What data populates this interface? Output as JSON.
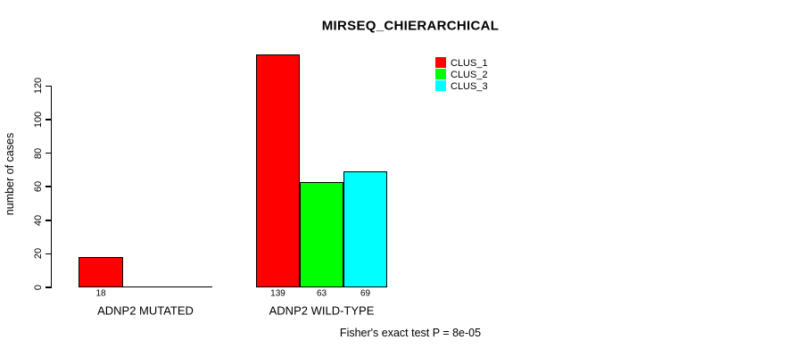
{
  "chart_data": {
    "type": "bar",
    "title": "MIRSEQ_CHIERARCHICAL",
    "ylabel": "number of cases",
    "xlabel": "",
    "categories": [
      "ADNP2 MUTATED",
      "ADNP2 WILD-TYPE"
    ],
    "series": [
      {
        "name": "CLUS_1",
        "color": "#ff0000",
        "values": [
          18,
          139
        ]
      },
      {
        "name": "CLUS_2",
        "color": "#00ff00",
        "values": [
          0,
          63
        ]
      },
      {
        "name": "CLUS_3",
        "color": "#00ffff",
        "values": [
          0,
          69
        ]
      }
    ],
    "yticks": [
      0,
      20,
      40,
      60,
      80,
      100,
      120
    ],
    "ylim": [
      0,
      139
    ],
    "grid": false,
    "legend_position": "top-right",
    "legend_entries": [
      "CLUS_1",
      "CLUS_2",
      "CLUS_3"
    ],
    "annotation": "Fisher's exact test P = 8e-05",
    "bar_border_color": "#000000",
    "axis_color": "#000000",
    "background_color": "#ffffff"
  }
}
